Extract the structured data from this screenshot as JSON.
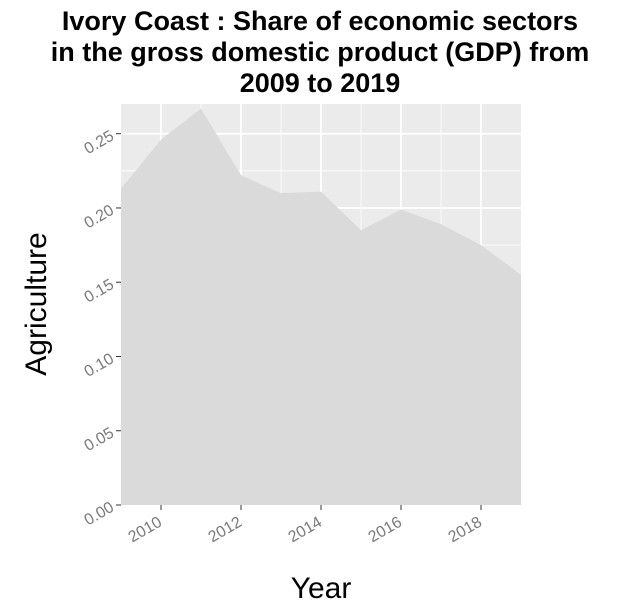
{
  "chart_data": {
    "type": "area",
    "title_lines": [
      "Ivory Coast : Share of economic sectors",
      "in the gross domestic product (GDP) from",
      "2009 to 2019"
    ],
    "xlabel": "Year",
    "ylabel": "Agriculture",
    "x": [
      2009,
      2010,
      2011,
      2012,
      2013,
      2014,
      2015,
      2016,
      2017,
      2018,
      2019
    ],
    "values": [
      0.213,
      0.246,
      0.267,
      0.222,
      0.21,
      0.211,
      0.185,
      0.199,
      0.189,
      0.175,
      0.155
    ],
    "xlim": [
      2009,
      2019
    ],
    "ylim": [
      0,
      0.27
    ],
    "x_ticks": [
      "2010",
      "2012",
      "2014",
      "2016",
      "2018"
    ],
    "y_ticks": [
      "0.00",
      "0.05",
      "0.10",
      "0.15",
      "0.20",
      "0.25"
    ],
    "grid": true,
    "colors": {
      "panel": "#ebebeb",
      "grid": "#ffffff",
      "area": "#dadada"
    }
  }
}
